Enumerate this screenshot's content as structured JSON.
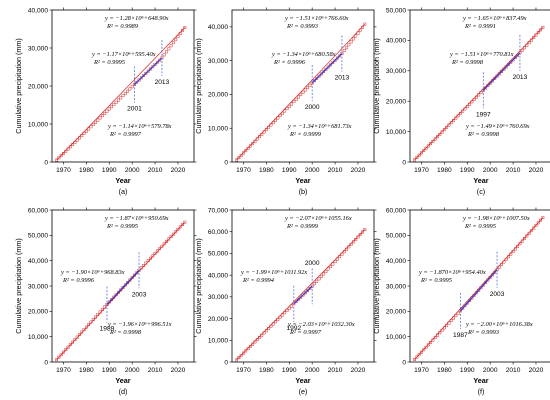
{
  "figure": {
    "xlabel": "Year",
    "ylabel": "Cumulative precipitation (mm)",
    "xlim": [
      1965,
      2027
    ],
    "xticks": [
      1970,
      1980,
      1990,
      2000,
      2010,
      2020
    ],
    "colors": {
      "observed": "#d62020",
      "segment": "#2b3bd6",
      "fit_line": "#888888",
      "breakpoint": "#3b5bdb"
    }
  },
  "chart_data": [
    {
      "type": "line",
      "panel_label": "(a)",
      "ylim": [
        0,
        40000
      ],
      "yticks": [
        0,
        10000,
        20000,
        30000,
        40000
      ],
      "ytick_labels": [
        "0",
        "10,000",
        "20,000",
        "30,000",
        "40,000"
      ],
      "breakpoints": [
        "2001",
        "2013"
      ],
      "segments": [
        {
          "x": [
            1967,
            2001
          ],
          "y": [
            500,
            20400
          ]
        },
        {
          "x": [
            2001,
            2013
          ],
          "y": [
            20400,
            27400
          ]
        },
        {
          "x": [
            2013,
            2023
          ],
          "y": [
            27400,
            35400
          ]
        }
      ],
      "annotations": [
        {
          "equation": "y = −1.28×10⁶+648.90x",
          "r2": "R² = 0.9989"
        },
        {
          "equation": "y = −1.17×10⁶+595.40x",
          "r2": "R² = 0.9995"
        },
        {
          "equation": "y = −1.14×10⁶+579.78x",
          "r2": "R² = 0.9997"
        }
      ]
    },
    {
      "type": "line",
      "panel_label": "(b)",
      "ylim": [
        0,
        45000
      ],
      "yticks": [
        0,
        10000,
        20000,
        30000,
        40000
      ],
      "ytick_labels": [
        "0",
        "10,000",
        "20,000",
        "30,000",
        "40,000"
      ],
      "breakpoints": [
        "2000",
        "2013"
      ],
      "segments": [
        {
          "x": [
            1967,
            2000
          ],
          "y": [
            600,
            23400
          ]
        },
        {
          "x": [
            2000,
            2013
          ],
          "y": [
            23400,
            32100
          ]
        },
        {
          "x": [
            2013,
            2023
          ],
          "y": [
            32100,
            40800
          ]
        }
      ],
      "annotations": [
        {
          "equation": "y = −1.51×10⁶+766.60x",
          "r2": "R² = 0.9993"
        },
        {
          "equation": "y = −1.34×10⁶+680.58x",
          "r2": "R² = 0.9996"
        },
        {
          "equation": "y = −1.34×10⁶+681.73x",
          "r2": "R² = 0.9999"
        }
      ]
    },
    {
      "type": "line",
      "panel_label": "(c)",
      "ylim": [
        0,
        50000
      ],
      "yticks": [
        0,
        10000,
        20000,
        30000,
        40000,
        50000
      ],
      "ytick_labels": [
        "0",
        "10,000",
        "20,000",
        "30,000",
        "40,000",
        "50,000"
      ],
      "breakpoints": [
        "1997",
        "2013"
      ],
      "segments": [
        {
          "x": [
            1967,
            1997
          ],
          "y": [
            700,
            23600
          ]
        },
        {
          "x": [
            1997,
            2013
          ],
          "y": [
            23600,
            35900
          ]
        },
        {
          "x": [
            2013,
            2023
          ],
          "y": [
            35900,
            44300
          ]
        }
      ],
      "annotations": [
        {
          "equation": "y = −1.65×10⁶+837.49x",
          "r2": "R² = 0.9991"
        },
        {
          "equation": "y = −1.51×10⁶+770.81x",
          "r2": "R² = 0.9998"
        },
        {
          "equation": "y = −1.49×10⁶+760.69x",
          "r2": "R² = 0.9998"
        }
      ]
    },
    {
      "type": "line",
      "panel_label": "(d)",
      "ylim": [
        0,
        60000
      ],
      "yticks": [
        0,
        10000,
        20000,
        30000,
        40000,
        50000,
        60000
      ],
      "ytick_labels": [
        "0",
        "10,000",
        "20,000",
        "30,000",
        "40,000",
        "50,000",
        "60,000"
      ],
      "breakpoints": [
        "1989",
        "2003"
      ],
      "segments": [
        {
          "x": [
            1967,
            1989
          ],
          "y": [
            900,
            22700
          ]
        },
        {
          "x": [
            1989,
            2003
          ],
          "y": [
            22700,
            36200
          ]
        },
        {
          "x": [
            2003,
            2023
          ],
          "y": [
            36200,
            55200
          ]
        }
      ],
      "annotations": [
        {
          "equation": "y = −1.87×10⁶+950.69x",
          "r2": "R² = 0.9995"
        },
        {
          "equation": "y = −1.90×10⁶+968.83x",
          "r2": "R² = 0.9996"
        },
        {
          "equation": "y = −1.96×10⁶+996.51x",
          "r2": "R² = 0.9998"
        }
      ]
    },
    {
      "type": "line",
      "panel_label": "(e)",
      "ylim": [
        0,
        70000
      ],
      "yticks": [
        0,
        10000,
        20000,
        30000,
        40000,
        50000,
        60000,
        70000
      ],
      "ytick_labels": [
        "0",
        "10,000",
        "20,000",
        "30,000",
        "40,000",
        "50,000",
        "60,000",
        "70,000"
      ],
      "breakpoints": [
        "1992",
        "2000"
      ],
      "segments": [
        {
          "x": [
            1967,
            1992
          ],
          "y": [
            1000,
            26800
          ]
        },
        {
          "x": [
            1992,
            2000
          ],
          "y": [
            26800,
            34900
          ]
        },
        {
          "x": [
            2000,
            2023
          ],
          "y": [
            34900,
            61000
          ]
        }
      ],
      "annotations": [
        {
          "equation": "y = −2.07×10⁶+1055.16x",
          "r2": "R² = 0.9999"
        },
        {
          "equation": "y = −1.99×10⁶+1011.92x",
          "r2": "R² = 0.9994"
        },
        {
          "equation": "y = −2.03×10⁶+1032.30x",
          "r2": "R² = 0.9997"
        }
      ]
    },
    {
      "type": "line",
      "panel_label": "(f)",
      "ylim": [
        0,
        60000
      ],
      "yticks": [
        0,
        10000,
        20000,
        30000,
        40000,
        50000,
        60000
      ],
      "ytick_labels": [
        "0",
        "10,000",
        "20,000",
        "30,000",
        "40,000",
        "50,000",
        "60,000"
      ],
      "breakpoints": [
        "1987",
        "2003"
      ],
      "segments": [
        {
          "x": [
            1967,
            1987
          ],
          "y": [
            1000,
            20200
          ]
        },
        {
          "x": [
            1987,
            2003
          ],
          "y": [
            20200,
            36400
          ]
        },
        {
          "x": [
            2003,
            2023
          ],
          "y": [
            36400,
            57000
          ]
        }
      ],
      "annotations": [
        {
          "equation": "y = −1.98×10⁶+1007.50x",
          "r2": "R² = 0.9995"
        },
        {
          "equation": "y = −1.870×10⁶+954.40x",
          "r2": "R² = 0.9995"
        },
        {
          "equation": "y = −2.00×10⁶+1016.38x",
          "r2": "R² = 0.9993"
        }
      ]
    }
  ]
}
